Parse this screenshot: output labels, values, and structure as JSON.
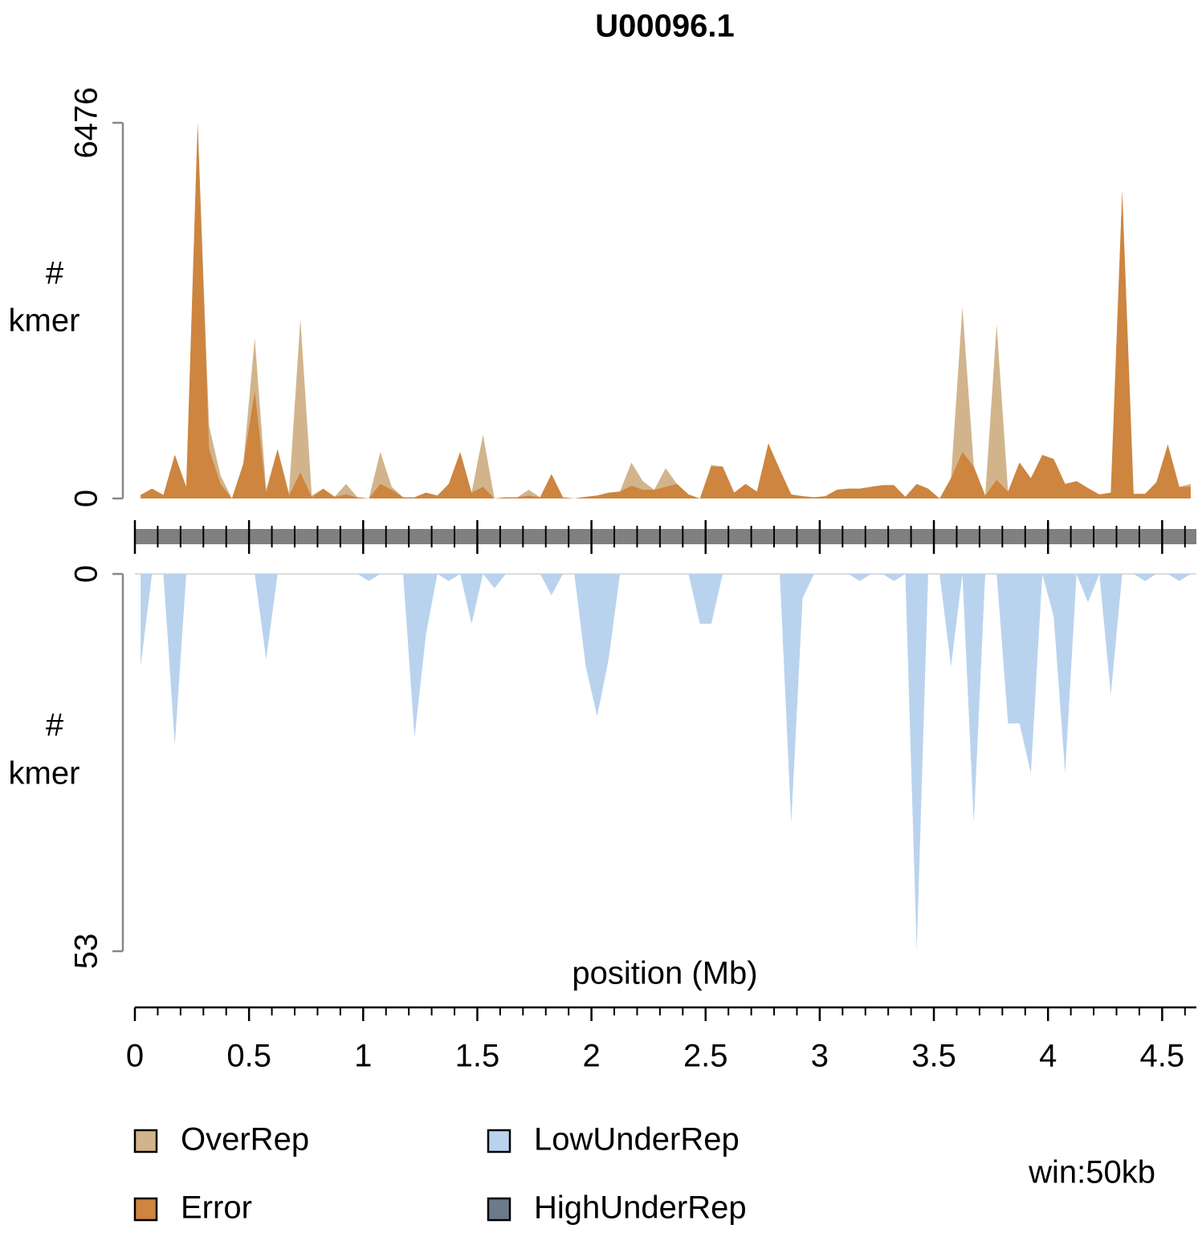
{
  "chart_data": [
    {
      "type": "area",
      "title": "U00096.1",
      "ylabel": [
        "#",
        "kmer"
      ],
      "x": [
        0.025,
        0.075,
        0.125,
        0.175,
        0.225,
        0.275,
        0.325,
        0.375,
        0.425,
        0.475,
        0.525,
        0.575,
        0.625,
        0.675,
        0.725,
        0.775,
        0.825,
        0.875,
        0.925,
        0.975,
        1.025,
        1.075,
        1.125,
        1.175,
        1.225,
        1.275,
        1.325,
        1.375,
        1.425,
        1.475,
        1.525,
        1.575,
        1.625,
        1.675,
        1.725,
        1.775,
        1.825,
        1.875,
        1.925,
        1.975,
        2.025,
        2.075,
        2.125,
        2.175,
        2.225,
        2.275,
        2.325,
        2.375,
        2.425,
        2.475,
        2.525,
        2.575,
        2.625,
        2.675,
        2.725,
        2.775,
        2.825,
        2.875,
        2.925,
        2.975,
        3.025,
        3.075,
        3.125,
        3.175,
        3.225,
        3.275,
        3.325,
        3.375,
        3.425,
        3.475,
        3.525,
        3.575,
        3.625,
        3.675,
        3.725,
        3.775,
        3.825,
        3.875,
        3.925,
        3.975,
        4.025,
        4.075,
        4.125,
        4.175,
        4.225,
        4.275,
        4.325,
        4.375,
        4.425,
        4.475,
        4.525,
        4.575,
        4.625
      ],
      "series": [
        {
          "name": "OverRep",
          "color": "#d2b48c",
          "values": [
            60,
            170,
            60,
            750,
            200,
            6476,
            1250,
            400,
            0,
            600,
            2770,
            150,
            850,
            100,
            3100,
            50,
            170,
            30,
            250,
            20,
            0,
            800,
            200,
            20,
            20,
            100,
            50,
            250,
            800,
            100,
            1100,
            0,
            20,
            20,
            150,
            20,
            420,
            20,
            0,
            30,
            50,
            100,
            120,
            620,
            300,
            150,
            520,
            250,
            70,
            0,
            580,
            550,
            100,
            250,
            120,
            950,
            500,
            70,
            40,
            20,
            40,
            150,
            170,
            170,
            200,
            230,
            230,
            30,
            250,
            170,
            0,
            350,
            3300,
            550,
            50,
            3000,
            120,
            620,
            350,
            750,
            680,
            250,
            300,
            180,
            70,
            100,
            5300,
            80,
            80,
            280,
            930,
            200,
            250
          ]
        },
        {
          "name": "Error",
          "color": "#cd853f",
          "values": [
            60,
            170,
            60,
            750,
            200,
            6476,
            850,
            250,
            0,
            600,
            1850,
            100,
            850,
            50,
            450,
            20,
            170,
            30,
            70,
            20,
            0,
            250,
            150,
            20,
            20,
            100,
            50,
            250,
            800,
            100,
            200,
            0,
            20,
            20,
            50,
            20,
            420,
            20,
            0,
            30,
            50,
            100,
            120,
            220,
            150,
            150,
            200,
            250,
            70,
            0,
            550,
            550,
            100,
            250,
            120,
            950,
            500,
            70,
            40,
            20,
            40,
            150,
            170,
            170,
            200,
            230,
            230,
            30,
            250,
            170,
            0,
            350,
            800,
            550,
            50,
            320,
            120,
            620,
            350,
            750,
            680,
            250,
            300,
            180,
            70,
            100,
            5300,
            80,
            80,
            280,
            930,
            200,
            200
          ]
        }
      ],
      "ylim": [
        0,
        6476
      ],
      "yticks": [
        0,
        6476
      ]
    },
    {
      "type": "area",
      "inverted": true,
      "ylabel": [
        "#",
        "kmer"
      ],
      "xlabel": "position (Mb)",
      "annotation": "win:50kb",
      "x": [
        0.025,
        0.075,
        0.125,
        0.175,
        0.225,
        0.275,
        0.325,
        0.375,
        0.425,
        0.475,
        0.525,
        0.575,
        0.625,
        0.675,
        0.725,
        0.775,
        0.825,
        0.875,
        0.925,
        0.975,
        1.025,
        1.075,
        1.125,
        1.175,
        1.225,
        1.275,
        1.325,
        1.375,
        1.425,
        1.475,
        1.525,
        1.575,
        1.625,
        1.675,
        1.725,
        1.775,
        1.825,
        1.875,
        1.925,
        1.975,
        2.025,
        2.075,
        2.125,
        2.175,
        2.225,
        2.275,
        2.325,
        2.375,
        2.425,
        2.475,
        2.525,
        2.575,
        2.625,
        2.675,
        2.725,
        2.775,
        2.825,
        2.875,
        2.925,
        2.975,
        3.025,
        3.075,
        3.125,
        3.175,
        3.225,
        3.275,
        3.325,
        3.375,
        3.425,
        3.475,
        3.525,
        3.575,
        3.625,
        3.675,
        3.725,
        3.775,
        3.825,
        3.875,
        3.925,
        3.975,
        4.025,
        4.075,
        4.125,
        4.175,
        4.225,
        4.275,
        4.325,
        4.375,
        4.425,
        4.475,
        4.525,
        4.575,
        4.625
      ],
      "series": [
        {
          "name": "LowUnderRep",
          "color": "#b9d3ee",
          "values": [
            13,
            0,
            0,
            24,
            0,
            0,
            0,
            0,
            0,
            0,
            0,
            12,
            0,
            0,
            0,
            0,
            0,
            0,
            0,
            0,
            1,
            0,
            0,
            0,
            23,
            8.5,
            0,
            1,
            0,
            7,
            0,
            2,
            0,
            0,
            0,
            0,
            3,
            0,
            0,
            13,
            20,
            12,
            0,
            0,
            0,
            0,
            0,
            0,
            0,
            7,
            7,
            0,
            0,
            0,
            0,
            0,
            0,
            35,
            3.4,
            0,
            0,
            0,
            0,
            1,
            0,
            0,
            1,
            0,
            53,
            0,
            0,
            13,
            0,
            35,
            0,
            0,
            21,
            21,
            28,
            0,
            6,
            28,
            0,
            4,
            0,
            17,
            0,
            0,
            1,
            0,
            0,
            1,
            0
          ]
        },
        {
          "name": "HighUnderRep",
          "color": "#6c7b8b",
          "values": [
            0,
            0,
            0,
            0,
            0,
            0,
            0,
            0,
            0,
            0,
            0,
            0,
            0,
            0,
            0,
            0,
            0,
            0,
            0,
            0,
            0,
            0,
            0,
            0,
            0,
            0,
            0,
            0,
            0,
            0,
            0,
            0,
            0,
            0,
            0,
            0,
            0,
            0,
            0,
            0,
            0,
            0,
            0,
            0,
            0,
            0,
            0,
            0,
            0,
            0,
            0,
            0,
            0,
            0,
            0,
            0,
            0,
            0,
            0,
            0,
            0,
            0,
            0,
            0,
            0,
            0,
            0,
            0,
            0,
            0,
            0,
            0,
            0,
            0,
            0,
            0,
            0,
            0,
            0,
            0,
            0,
            0,
            0,
            0,
            0,
            0,
            0,
            0,
            0,
            0,
            0,
            0,
            0
          ]
        }
      ],
      "ylim": [
        0,
        53
      ],
      "yticks": [
        0,
        53
      ],
      "xlim": [
        0,
        4.65
      ],
      "xticks": [
        0,
        0.5,
        1,
        1.5,
        2,
        2.5,
        3,
        3.5,
        4,
        4.5
      ],
      "xminorticks": [
        0.1,
        0.2,
        0.3,
        0.4,
        0.6,
        0.7,
        0.8,
        0.9,
        1.1,
        1.2,
        1.3,
        1.4,
        1.6,
        1.7,
        1.8,
        1.9,
        2.1,
        2.2,
        2.3,
        2.4,
        2.6,
        2.7,
        2.8,
        2.9,
        3.1,
        3.2,
        3.3,
        3.4,
        3.6,
        3.7,
        3.8,
        3.9,
        4.1,
        4.2,
        4.3,
        4.4,
        4.6
      ]
    }
  ]
}
